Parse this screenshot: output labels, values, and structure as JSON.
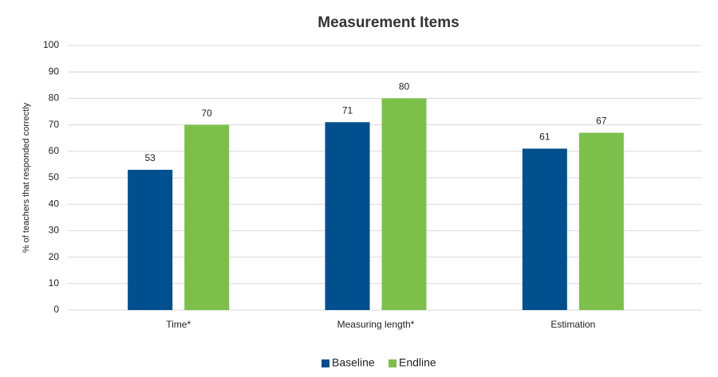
{
  "chart_data": {
    "type": "bar",
    "title": "Measurement Items",
    "y_label": "% of teachers that responded correctly",
    "categories": [
      "Time*",
      "Measuring length*",
      "Estimation"
    ],
    "series": [
      {
        "name": "Baseline",
        "color": "#004f8f",
        "values": [
          53,
          71,
          61
        ]
      },
      {
        "name": "Endline",
        "color": "#7cc04b",
        "values": [
          70,
          80,
          67
        ]
      }
    ],
    "ylim": [
      0,
      100
    ],
    "yticks": [
      0,
      10,
      20,
      30,
      40,
      50,
      60,
      70,
      80,
      90,
      100
    ],
    "grid": true,
    "legend": "bottom"
  }
}
